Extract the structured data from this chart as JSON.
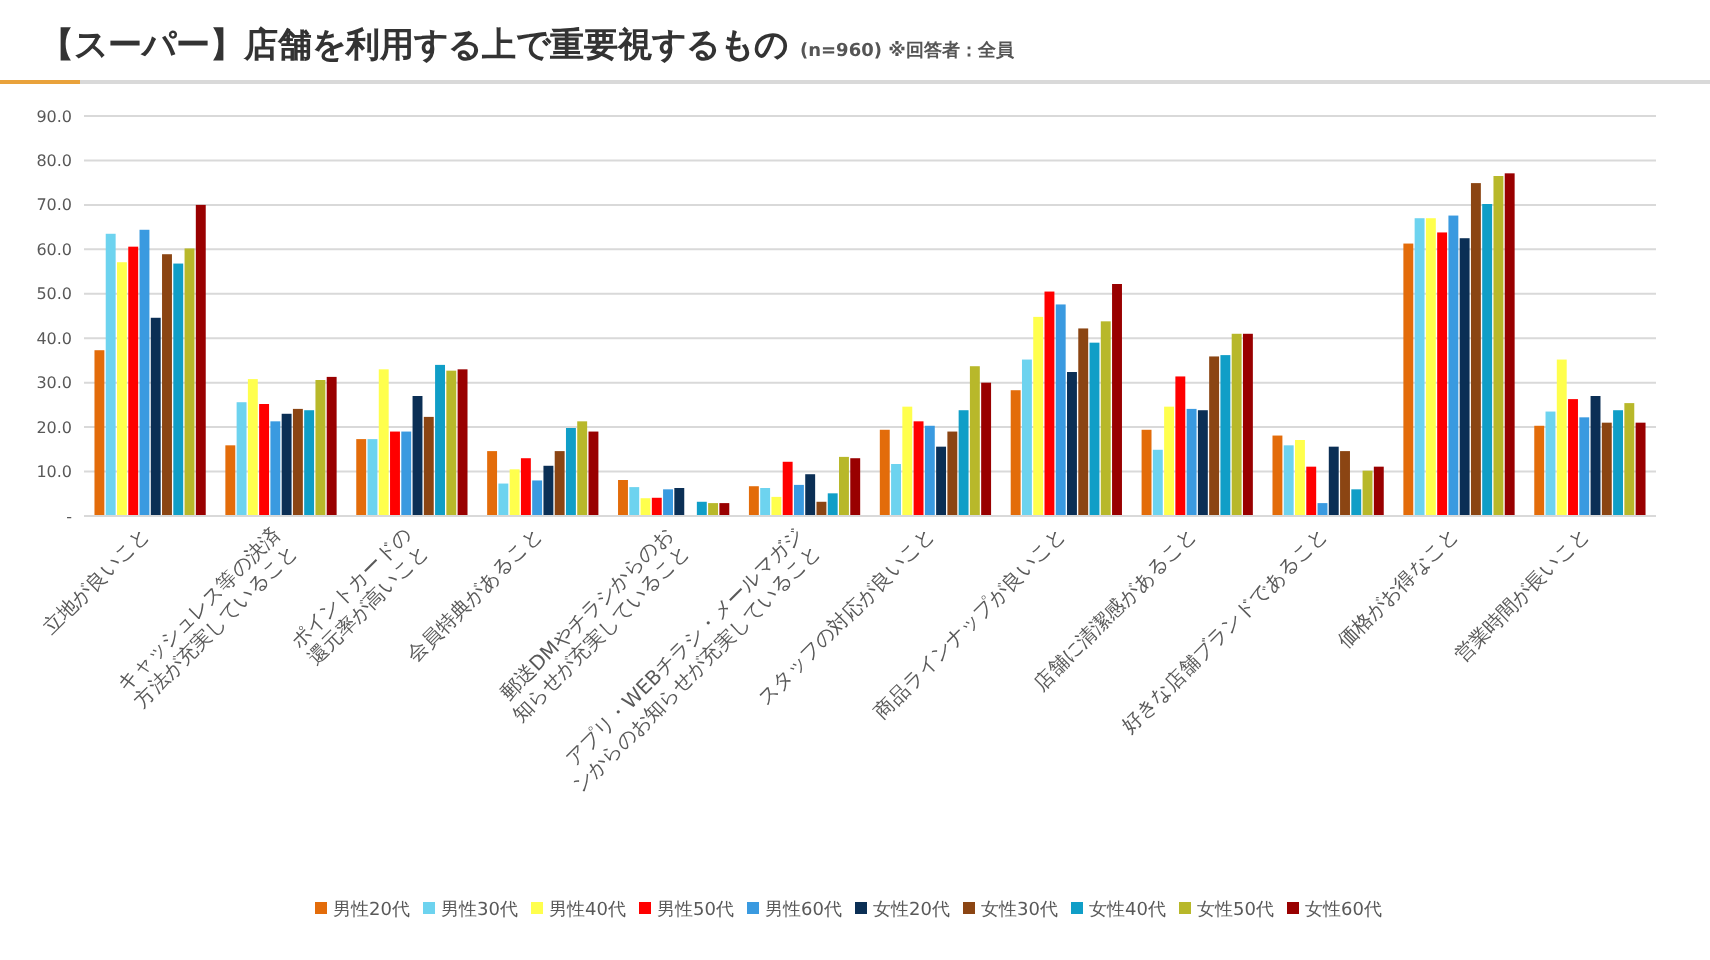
{
  "chart_data": {
    "type": "bar",
    "title": "【スーパー】店舗を利用する上で重要視するもの",
    "subtitle": "(n=960) ※回答者：全員",
    "categories": [
      "立地が良いこと",
      "キャッシュレス等の決済方法が充実していること",
      "ポイントカードの還元率が高いこと",
      "会員特典があること",
      "郵送DMやチラシからのお知らせが充実していること",
      "アプリ・WEBチラシ・メールマガジンからのお知らせが充実していること",
      "スタッフの対応が良いこと",
      "商品ラインナップが良いこと",
      "店舗に清潔感があること",
      "好きな店舗ブランドであること",
      "価格がお得なこと",
      "営業時間が長いこと"
    ],
    "ylim": [
      0,
      90
    ],
    "yticks": [
      {
        "value": 0,
        "label": "-"
      },
      {
        "value": 10,
        "label": "10.0"
      },
      {
        "value": 20,
        "label": "20.0"
      },
      {
        "value": 30,
        "label": "30.0"
      },
      {
        "value": 40,
        "label": "40.0"
      },
      {
        "value": 50,
        "label": "50.0"
      },
      {
        "value": 60,
        "label": "60.0"
      },
      {
        "value": 70,
        "label": "70.0"
      },
      {
        "value": 80,
        "label": "80.0"
      },
      {
        "value": 90,
        "label": "90.0"
      }
    ],
    "grid": "y",
    "legend": "bottom",
    "series": [
      {
        "name": "男性20代",
        "color": "#e36c0a",
        "values": [
          37.3,
          15.9,
          17.3,
          14.6,
          8.1,
          6.7,
          19.4,
          28.3,
          19.4,
          18.1,
          61.3,
          20.3
        ]
      },
      {
        "name": "男性30代",
        "color": "#6dd3ef",
        "values": [
          63.5,
          25.6,
          17.3,
          7.3,
          6.5,
          6.3,
          11.7,
          35.2,
          14.9,
          15.9,
          67.0,
          23.5
        ]
      },
      {
        "name": "男性40代",
        "color": "#ffff4d",
        "values": [
          57.1,
          30.8,
          33.0,
          10.5,
          4.0,
          4.3,
          24.6,
          44.8,
          24.6,
          17.1,
          67.0,
          35.2
        ]
      },
      {
        "name": "男性50代",
        "color": "#ff0000",
        "values": [
          60.6,
          25.2,
          19.0,
          13.0,
          4.1,
          12.2,
          21.3,
          50.5,
          31.4,
          11.1,
          63.8,
          26.3
        ]
      },
      {
        "name": "男性60代",
        "color": "#3a9ae0",
        "values": [
          64.4,
          21.3,
          19.0,
          8.0,
          6.0,
          7.0,
          20.3,
          47.6,
          24.1,
          2.9,
          67.6,
          22.2
        ]
      },
      {
        "name": "女性20代",
        "color": "#0b2f55",
        "values": [
          44.6,
          23.0,
          27.0,
          11.3,
          6.3,
          9.4,
          15.6,
          32.4,
          23.8,
          15.6,
          62.5,
          27.0
        ]
      },
      {
        "name": "女性30代",
        "color": "#8b4513",
        "values": [
          58.9,
          24.1,
          22.3,
          14.6,
          0,
          3.2,
          19.0,
          42.2,
          35.9,
          14.6,
          74.9,
          21.0
        ]
      },
      {
        "name": "女性40代",
        "color": "#109ec7",
        "values": [
          56.8,
          23.8,
          34.0,
          19.8,
          3.2,
          5.1,
          23.8,
          39.0,
          36.2,
          6.0,
          70.2,
          23.8
        ]
      },
      {
        "name": "女性50代",
        "color": "#b8b82a",
        "values": [
          60.2,
          30.6,
          32.7,
          21.3,
          2.9,
          13.3,
          33.7,
          43.8,
          41.0,
          10.2,
          76.5,
          25.4
        ]
      },
      {
        "name": "女性60代",
        "color": "#990000",
        "values": [
          70.0,
          31.3,
          33.0,
          19.0,
          2.9,
          13.0,
          30.0,
          52.2,
          41.0,
          11.1,
          77.1,
          21.0
        ]
      }
    ]
  }
}
